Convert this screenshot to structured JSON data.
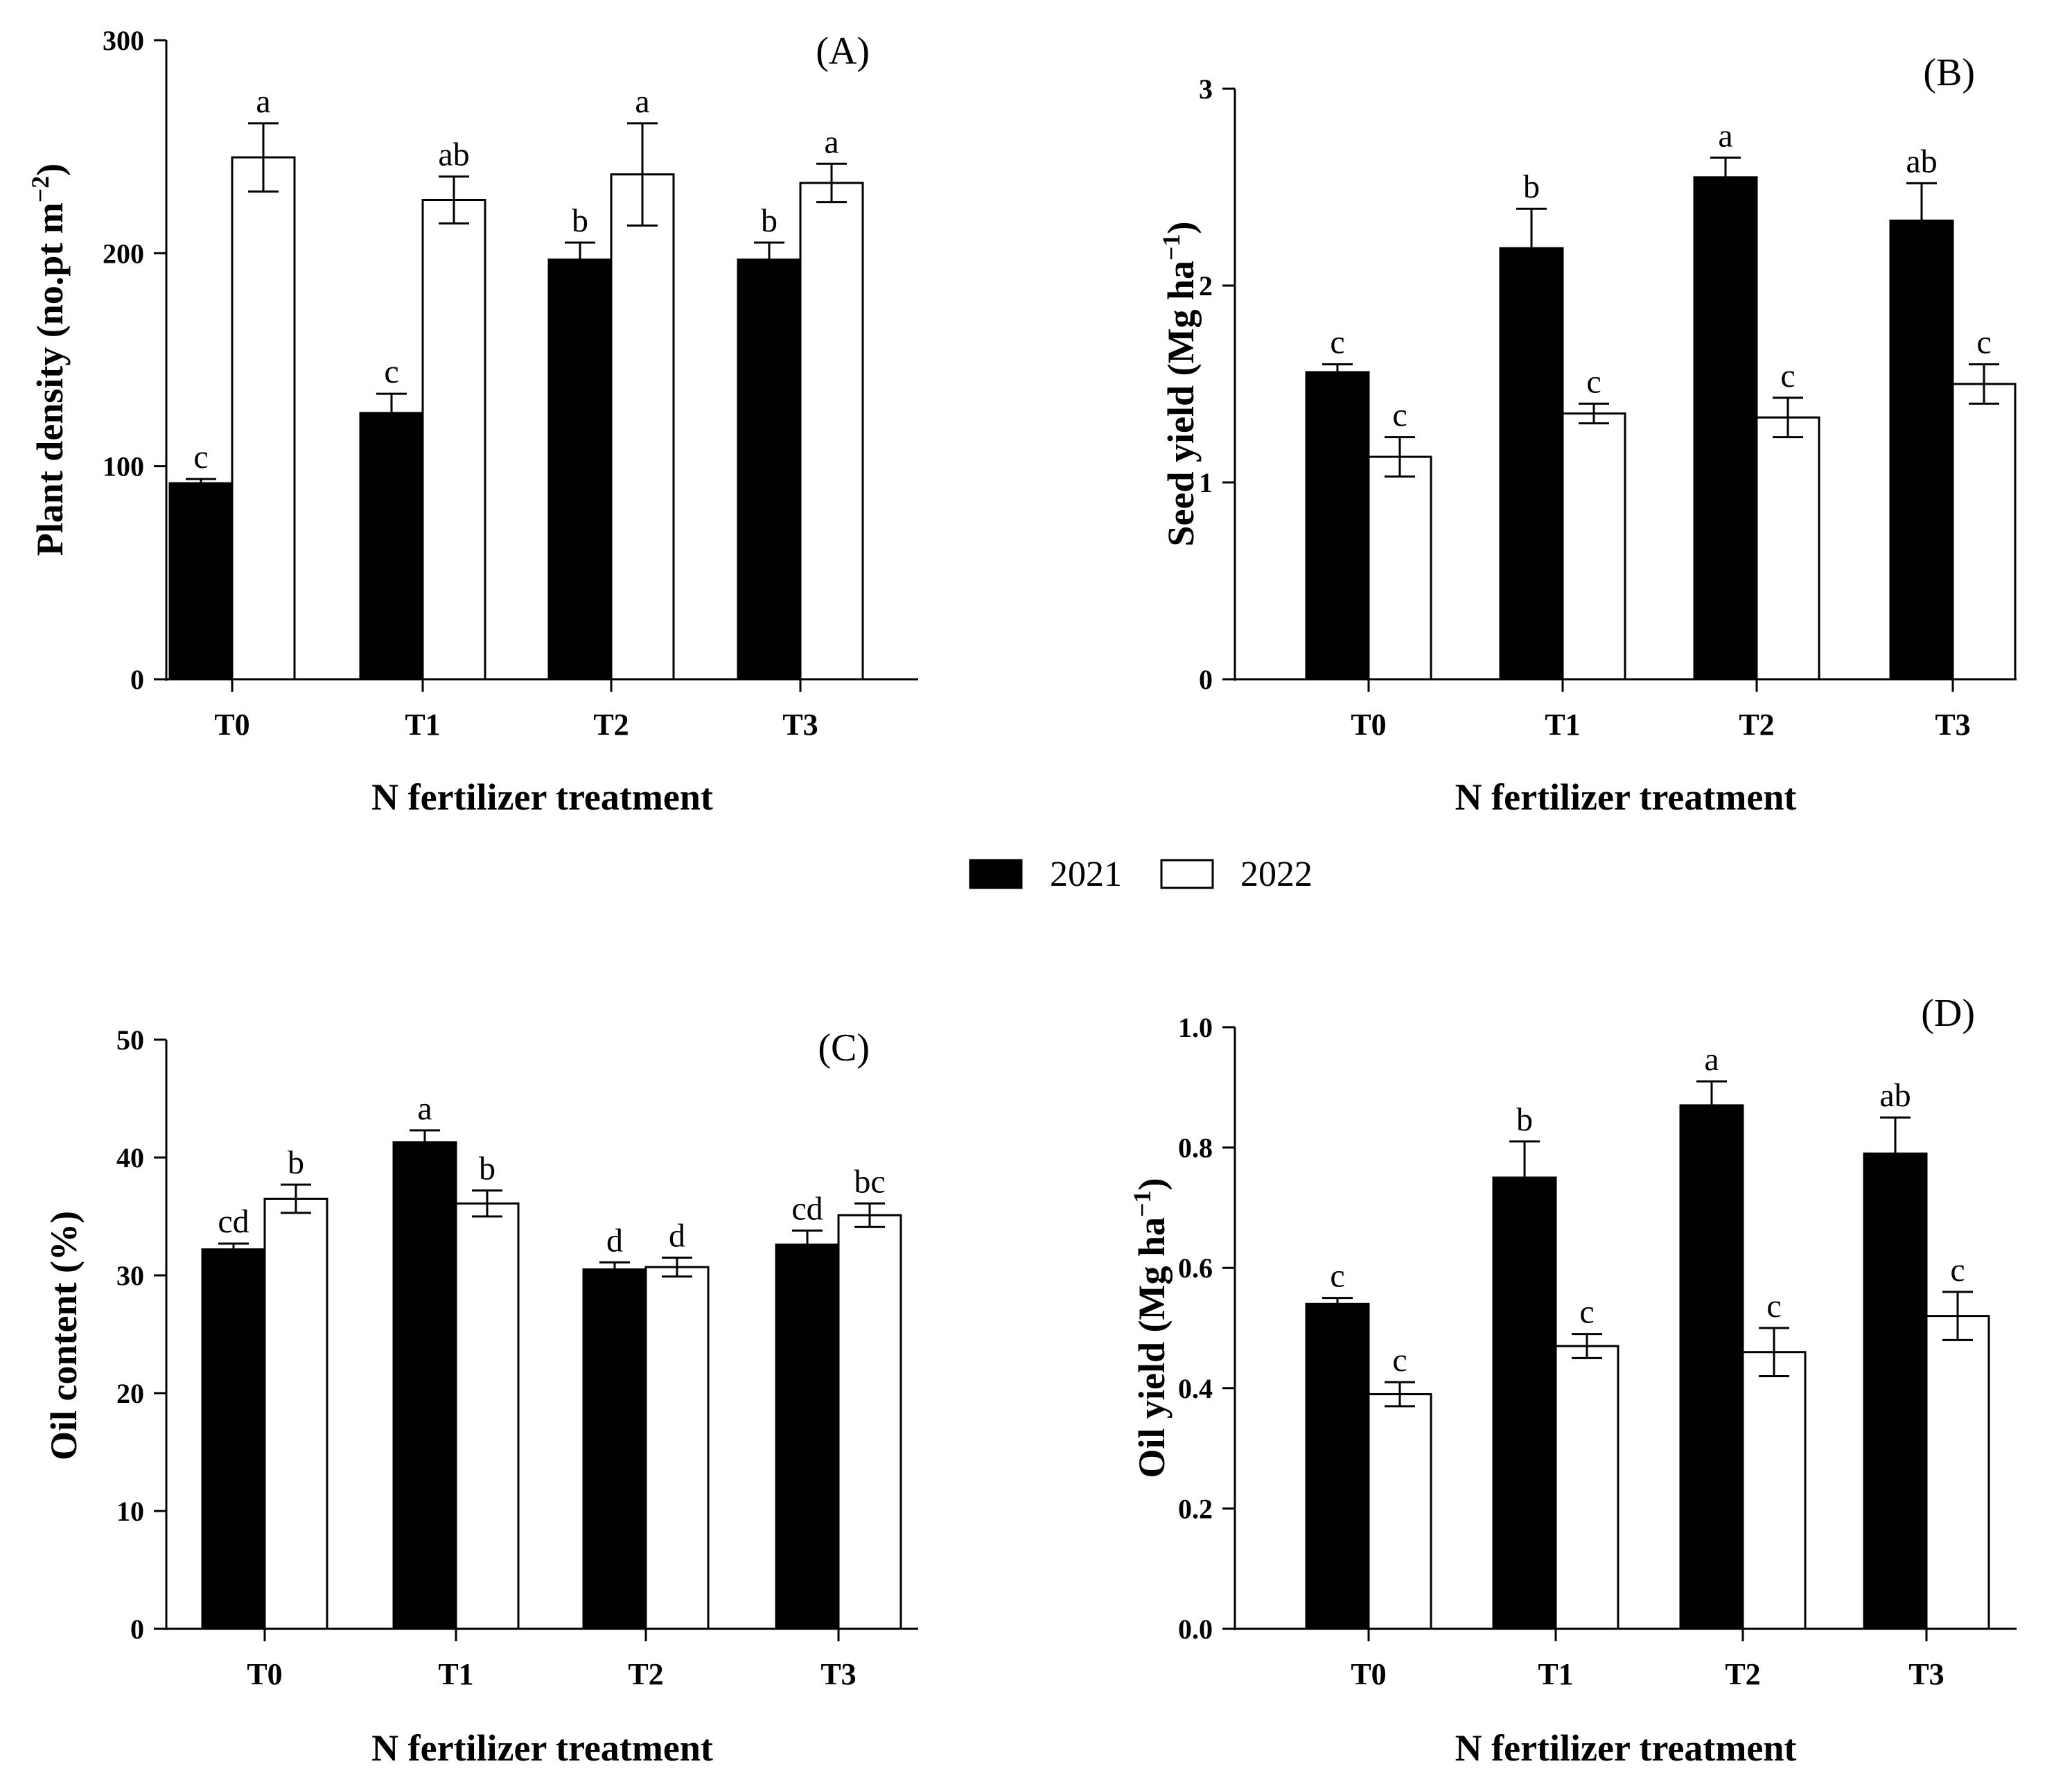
{
  "legend": {
    "items": [
      {
        "label": "2021",
        "color": "#000000"
      },
      {
        "label": "2022",
        "color": "#ffffff"
      }
    ]
  },
  "chart_data": [
    {
      "type": "bar",
      "panel_label": "(A)",
      "xlabel": "N fertilizer treatment",
      "ylabel": "Plant density (no.pt m",
      "ylabel_sup": "−2",
      "ylabel_end": ")",
      "ylim": [
        0,
        300
      ],
      "yticks": [
        "0",
        "100",
        "200",
        "300"
      ],
      "categories": [
        "T0",
        "T1",
        "T2",
        "T3"
      ],
      "series": [
        {
          "name": "2021",
          "values": [
            92,
            125,
            197,
            197
          ],
          "errors": [
            2,
            9,
            8,
            8
          ],
          "letters": [
            "c",
            "c",
            "b",
            "b"
          ]
        },
        {
          "name": "2022",
          "values": [
            245,
            225,
            237,
            233
          ],
          "errors": [
            16,
            11,
            24,
            9
          ],
          "letters": [
            "a",
            "ab",
            "a",
            "a"
          ]
        }
      ]
    },
    {
      "type": "bar",
      "panel_label": "(B)",
      "xlabel": "N fertilizer treatment",
      "ylabel": "Seed yield (Mg ha",
      "ylabel_sup": "−1",
      "ylabel_end": ")",
      "ylim": [
        0,
        3
      ],
      "yticks": [
        "0",
        "1",
        "2",
        "3"
      ],
      "categories": [
        "T0",
        "T1",
        "T2",
        "T3"
      ],
      "series": [
        {
          "name": "2021",
          "values": [
            1.56,
            2.19,
            2.55,
            2.33
          ],
          "errors": [
            0.04,
            0.2,
            0.1,
            0.19
          ],
          "letters": [
            "c",
            "b",
            "a",
            "ab"
          ]
        },
        {
          "name": "2022",
          "values": [
            1.13,
            1.35,
            1.33,
            1.5
          ],
          "errors": [
            0.1,
            0.05,
            0.1,
            0.1
          ],
          "letters": [
            "c",
            "c",
            "c",
            "c"
          ]
        }
      ]
    },
    {
      "type": "bar",
      "panel_label": "(C)",
      "xlabel": "N fertilizer treatment",
      "ylabel": "Oil content (%)",
      "ylabel_sup": "",
      "ylabel_end": "",
      "ylim": [
        0,
        50
      ],
      "yticks": [
        "0",
        "10",
        "20",
        "30",
        "40",
        "50"
      ],
      "categories": [
        "T0",
        "T1",
        "T2",
        "T3"
      ],
      "series": [
        {
          "name": "2021",
          "values": [
            32.2,
            41.3,
            30.5,
            32.6
          ],
          "errors": [
            0.5,
            1.0,
            0.6,
            1.2
          ],
          "letters": [
            "cd",
            "a",
            "d",
            "cd"
          ]
        },
        {
          "name": "2022",
          "values": [
            36.5,
            36.1,
            30.7,
            35.1
          ],
          "errors": [
            1.2,
            1.1,
            0.8,
            1.0
          ],
          "letters": [
            "b",
            "b",
            "d",
            "bc"
          ]
        }
      ]
    },
    {
      "type": "bar",
      "panel_label": "(D)",
      "xlabel": "N fertilizer treatment",
      "ylabel": "Oil yield (Mg ha",
      "ylabel_sup": "−1",
      "ylabel_end": ")",
      "ylim": [
        0,
        1.0
      ],
      "yticks": [
        "0.0",
        "0.2",
        "0.4",
        "0.6",
        "0.8",
        "1.0"
      ],
      "categories": [
        "T0",
        "T1",
        "T2",
        "T3"
      ],
      "series": [
        {
          "name": "2021",
          "values": [
            0.54,
            0.75,
            0.87,
            0.79
          ],
          "errors": [
            0.01,
            0.06,
            0.04,
            0.06
          ],
          "letters": [
            "c",
            "b",
            "a",
            "ab"
          ]
        },
        {
          "name": "2022",
          "values": [
            0.39,
            0.47,
            0.46,
            0.52
          ],
          "errors": [
            0.02,
            0.02,
            0.04,
            0.04
          ],
          "letters": [
            "c",
            "c",
            "c",
            "c"
          ]
        }
      ]
    }
  ]
}
